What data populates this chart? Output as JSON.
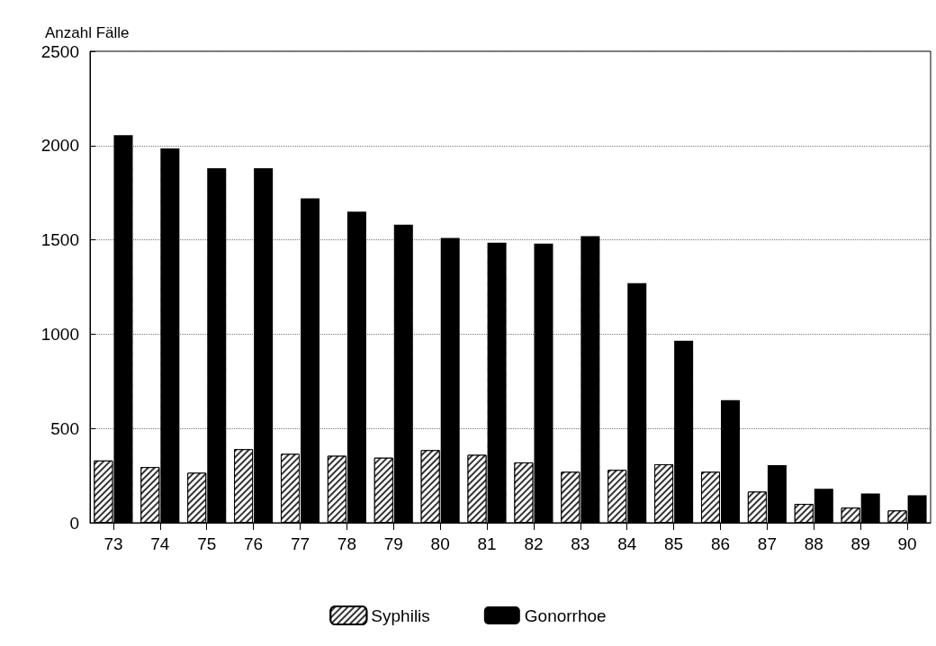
{
  "chart_data": {
    "type": "bar",
    "ylabel": "Anzahl Fälle",
    "categories": [
      "73",
      "74",
      "75",
      "76",
      "77",
      "78",
      "79",
      "80",
      "81",
      "82",
      "83",
      "84",
      "85",
      "86",
      "87",
      "88",
      "89",
      "90"
    ],
    "series": [
      {
        "name": "Syphilis",
        "color": "#333333",
        "values": [
          330,
          295,
          265,
          390,
          365,
          355,
          345,
          385,
          360,
          320,
          270,
          280,
          310,
          270,
          165,
          100,
          80,
          65
        ]
      },
      {
        "name": "Gonorrhoe",
        "color": "#000000",
        "values": [
          2055,
          1985,
          1880,
          1880,
          1720,
          1650,
          1580,
          1510,
          1485,
          1480,
          1520,
          1270,
          965,
          650,
          305,
          180,
          155,
          145
        ]
      }
    ],
    "ylim": [
      0,
      2500
    ],
    "yticks": [
      0,
      500,
      1000,
      1500,
      2000,
      2500
    ],
    "grid": "y",
    "legend": "bottom"
  }
}
